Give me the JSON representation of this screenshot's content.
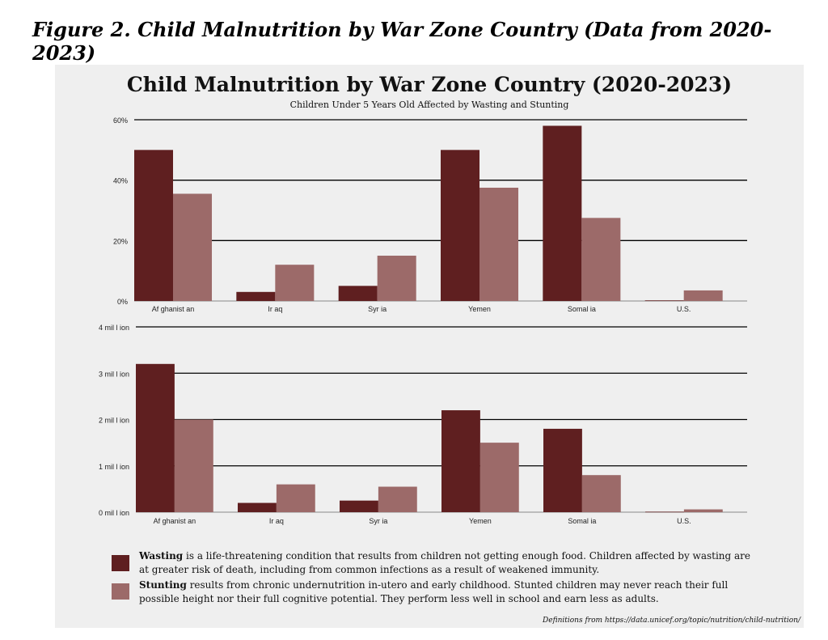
{
  "figure_caption": "Figure 2. Child Malnutrition by War Zone Country (Data from 2020-2023)",
  "colors": {
    "wasting": "#5f1f20",
    "stunting": "#9c6a69",
    "panel_bg": "#efefef"
  },
  "legend": {
    "wasting_term": "Wasting",
    "wasting_text": " is a life-threatening condition that results from children not getting enough food. Children affected by wasting are at greater risk of death, including from common infections as a result of weakened immunity.",
    "stunting_term": "Stunting",
    "stunting_text": " results from chronic undernutrition in-utero and early childhood. Stunted children may never reach their full possible height nor their full cognitive potential. They perform less well in school and earn less as adults."
  },
  "source_note": "Definitions from https://data.unicef.org/topic/nutrition/child-nutrition/",
  "chart_data": [
    {
      "type": "bar",
      "title": "Child Malnutrition by War Zone Country (2020-2023)",
      "subtitle": "Children Under 5 Years Old Affected by Wasting and Stunting",
      "categories": [
        "Af ghanist an",
        "Ir aq",
        "Syr ia",
        "Yemen",
        "Somal ia",
        "U.S."
      ],
      "series": [
        {
          "name": "Wasting",
          "values": [
            50,
            3,
            5,
            50,
            58,
            0.2
          ]
        },
        {
          "name": "Stunting",
          "values": [
            35.5,
            12,
            15,
            37.5,
            27.5,
            3.5
          ]
        }
      ],
      "ylim": [
        0,
        60
      ],
      "yticks": [
        0,
        20,
        40,
        60
      ],
      "ytick_labels": [
        "0%",
        "20%",
        "40%",
        "60%"
      ],
      "grid": true
    },
    {
      "type": "bar",
      "categories": [
        "Af ghanist an",
        "Ir aq",
        "Syr ia",
        "Yemen",
        "Somal ia",
        "U.S."
      ],
      "series": [
        {
          "name": "Wasting",
          "values": [
            3.2,
            0.2,
            0.25,
            2.2,
            1.8,
            0.01
          ]
        },
        {
          "name": "Stunting",
          "values": [
            2.0,
            0.6,
            0.55,
            1.5,
            0.8,
            0.06
          ]
        }
      ],
      "ylim": [
        0,
        4
      ],
      "yticks": [
        0,
        1,
        2,
        3,
        4
      ],
      "ytick_labels": [
        "0 mil l ion",
        "1 mil l ion",
        "2 mil l ion",
        "3 mil l ion",
        "4 mil l ion"
      ],
      "grid": true
    }
  ]
}
